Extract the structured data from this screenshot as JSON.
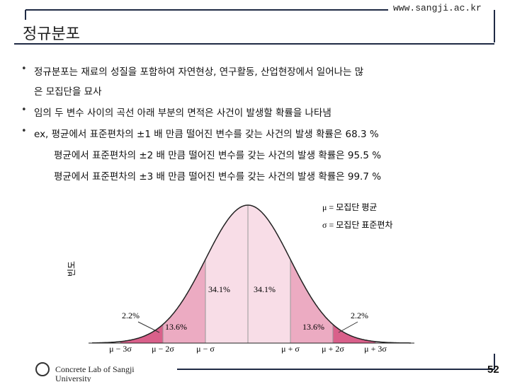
{
  "header": {
    "url": "www.sangji.ac.kr",
    "title": "정규분포"
  },
  "bullets": [
    [
      "정규분포는 재료의 성질을 포함하여 자연현상, 연구활동, 산업현장에서 일어나는 많",
      "은 모집단을 묘사"
    ],
    [
      "임의 두 변수 사이의 곡선 아래 부분의 면적은 사건이 발생할 확률을 나타냄"
    ],
    [
      "ex, 평균에서 표준편차의 ±1 배 만큼 떨어진 변수를 갖는 사건의 발생 확률은 68.3 %",
      "평균에서 표준편차의 ±2 배 만큼 떨어진 변수를 갖는 사건의 발생 확률은 95.5 %",
      "평균에서 표준편차의 ±3 배 만큼 떨어진 변수를 갖는 사건의 발생 확률은 99.7 %"
    ]
  ],
  "figure": {
    "legend": [
      "μ = 모집단 평균",
      "σ = 모집단 표준편차"
    ],
    "y_label": "빈도",
    "region_labels": [
      "2.2%",
      "13.6%",
      "34.1%",
      "34.1%",
      "13.6%",
      "2.2%"
    ],
    "x_labels": [
      "μ − 3σ",
      "μ − 2σ",
      "μ − σ",
      "μ + σ",
      "μ + 2σ",
      "μ + 3σ"
    ]
  },
  "footer": {
    "lab": "Concrete Lab of Sangji University",
    "page": "52"
  }
}
